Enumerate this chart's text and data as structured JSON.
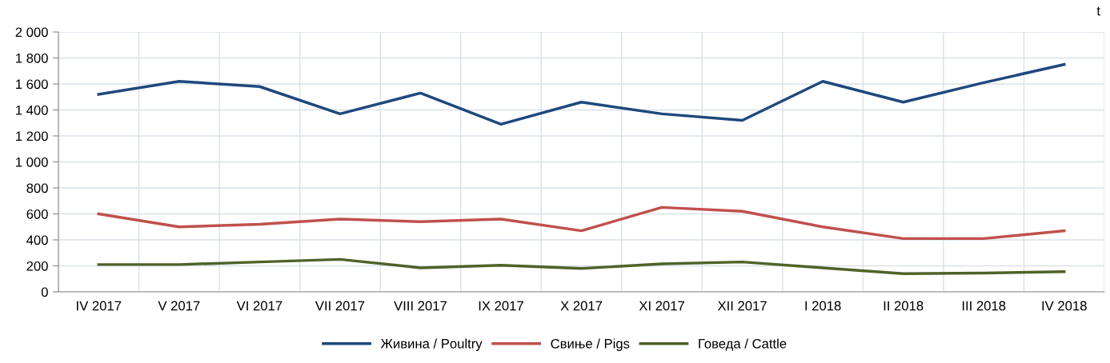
{
  "chart_data": {
    "type": "line",
    "ylabel": "t",
    "categories": [
      "IV 2017",
      "V 2017",
      "VI 2017",
      "VII 2017",
      "VIII 2017",
      "IX 2017",
      "X 2017",
      "XI 2017",
      "XII 2017",
      "I 2018",
      "II 2018",
      "III 2018",
      "IV 2018"
    ],
    "series": [
      {
        "name": "Живина / Poultry",
        "color": "#1f497d",
        "values": [
          1520,
          1620,
          1580,
          1370,
          1530,
          1290,
          1460,
          1370,
          1320,
          1620,
          1460,
          1610,
          1750
        ]
      },
      {
        "name": "Свиње / Pigs",
        "color": "#c0504d",
        "values": [
          600,
          500,
          520,
          560,
          540,
          560,
          470,
          650,
          620,
          500,
          410,
          410,
          470
        ]
      },
      {
        "name": "Говеда / Cattle",
        "color": "#4f6228",
        "values": [
          210,
          210,
          230,
          250,
          185,
          205,
          180,
          215,
          230,
          185,
          140,
          145,
          155
        ]
      }
    ],
    "ylim": [
      0,
      2000
    ],
    "yticks": [
      0,
      200,
      400,
      600,
      800,
      {
        "value": 1000,
        "label": "1 000"
      },
      {
        "value": 1200,
        "label": "1 200"
      },
      {
        "value": 1400,
        "label": "1 400"
      },
      {
        "value": 1600,
        "label": "1 600"
      },
      {
        "value": 1800,
        "label": "1 800"
      },
      {
        "value": 2000,
        "label": "2 000"
      }
    ],
    "grid": true,
    "legend": "bottom",
    "marker": "none",
    "line_style": "solid"
  }
}
